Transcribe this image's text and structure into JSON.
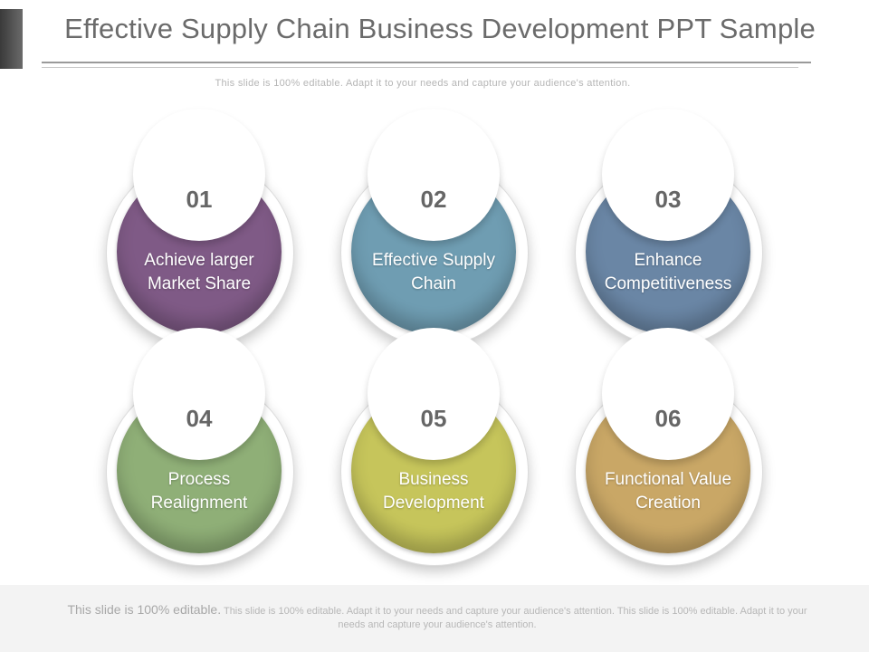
{
  "slide": {
    "title": "Effective Supply Chain Business Development PPT Sample",
    "subtitle": "This slide is 100% editable. Adapt it to your needs and capture your audience's attention."
  },
  "items": [
    {
      "number": "01",
      "label": "Achieve larger Market Share",
      "color": "#7f5a86"
    },
    {
      "number": "02",
      "label": "Effective Supply Chain",
      "color": "#6f9db2"
    },
    {
      "number": "03",
      "label": "Enhance Competitiveness",
      "color": "#6a86a5"
    },
    {
      "number": "04",
      "label": "Process Realignment",
      "color": "#8faf77"
    },
    {
      "number": "05",
      "label": "Business Development",
      "color": "#c6c55b"
    },
    {
      "number": "06",
      "label": "Functional Value Creation",
      "color": "#c9a766"
    }
  ],
  "footer": {
    "lead": "This slide is 100% editable.",
    "text": "This slide is 100% editable. Adapt it to your needs and capture your audience's attention. This slide is 100% editable. Adapt it to your needs and capture your audience's attention."
  }
}
